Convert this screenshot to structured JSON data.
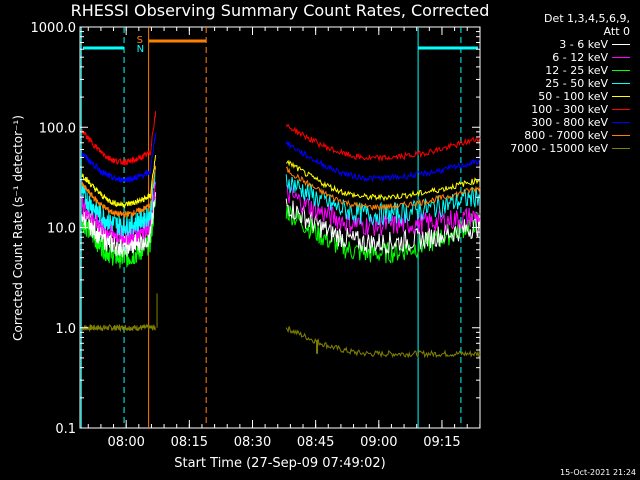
{
  "chart_data": {
    "type": "line",
    "title": "RHESSI Observing Summary Count Rates, Corrected",
    "xlabel": "Start Time (27-Sep-09 07:49:02)",
    "ylabel": "Corrected Count Rate (s⁻¹ detector⁻¹)",
    "yscale": "log",
    "ylim": [
      0.1,
      1000
    ],
    "xlim": [
      "07:49:02",
      "09:24:02"
    ],
    "x_tick_labels": [
      "08:00",
      "08:15",
      "08:30",
      "08:45",
      "09:00",
      "09:15"
    ],
    "y_tick_labels": [
      "0.1",
      "1.0",
      "10.0",
      "100.0",
      "1000.0"
    ],
    "legend_header": [
      "Det 1,3,4,5,6,9,",
      "Att 0"
    ],
    "series": [
      {
        "name": "3 - 6 keV",
        "color": "#ffffff",
        "pass1": {
          "start": 13.5,
          "min": 6.5,
          "end": 9.0
        },
        "pass2": {
          "start": 17,
          "min": 7.0,
          "end": 10.5
        }
      },
      {
        "name": "6 - 12 keV",
        "color": "#ff00ff",
        "pass1": {
          "start": 17,
          "min": 8.5,
          "end": 12
        },
        "pass2": {
          "start": 22,
          "min": 10.5,
          "end": 13
        }
      },
      {
        "name": "12 - 25 keV",
        "color": "#00ff00",
        "pass1": {
          "start": 12,
          "min": 5.0,
          "end": 8.0
        },
        "pass2": {
          "start": 15,
          "min": 5.5,
          "end": 12
        }
      },
      {
        "name": "25 - 50 keV",
        "color": "#00ffff",
        "pass1": {
          "start": 22,
          "min": 10.5,
          "end": 15
        },
        "pass2": {
          "start": 30,
          "min": 13.5,
          "end": 21
        }
      },
      {
        "name": "50 - 100 keV",
        "color": "#ffff00",
        "pass1": {
          "start": 34,
          "min": 17,
          "end": 22
        },
        "pass2": {
          "start": 46,
          "min": 20,
          "end": 30
        }
      },
      {
        "name": "100 - 300 keV",
        "color": "#ff0000",
        "pass1": {
          "start": 92,
          "min": 45,
          "end": 60
        },
        "pass2": {
          "start": 105,
          "min": 49,
          "end": 78
        }
      },
      {
        "name": "300 - 800 keV",
        "color": "#0000ff",
        "pass1": {
          "start": 55,
          "min": 30,
          "end": 38
        },
        "pass2": {
          "start": 70,
          "min": 31,
          "end": 46
        }
      },
      {
        "name": "800 - 7000 keV",
        "color": "#ff8000",
        "pass1": {
          "start": 27,
          "min": 13.5,
          "end": 18
        },
        "pass2": {
          "start": 38,
          "min": 16,
          "end": 25
        }
      },
      {
        "name": "7000 - 15000 keV",
        "color": "#808000",
        "pass1": {
          "start": 1.0,
          "min": 1.0,
          "end": 1.0
        },
        "pass2": {
          "start": 1.0,
          "min": 0.55,
          "end": 0.55
        }
      }
    ],
    "annotations": {
      "saa_label": "S",
      "night_label": "N"
    }
  },
  "footer": {
    "timestamp": "15-Oct-2021 21:24"
  }
}
